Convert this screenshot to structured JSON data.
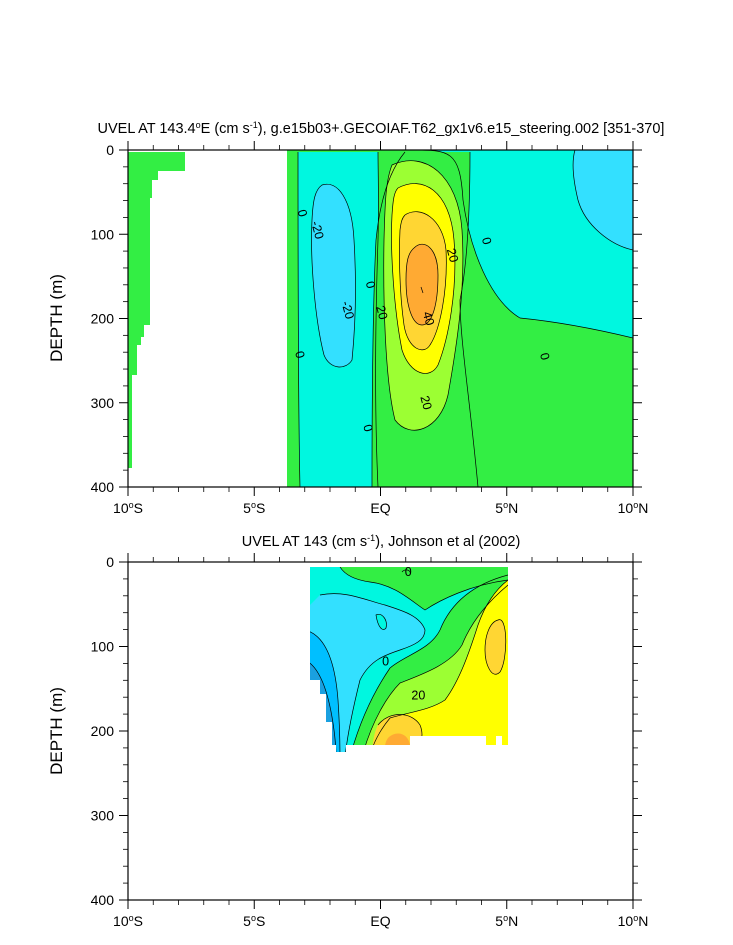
{
  "chart_data": [
    {
      "type": "contour",
      "title_html": "UVEL AT 143.4<tspan baseline-shift='super' font-size='9'>o</tspan>E (cm s<tspan baseline-shift='super' font-size='9'>-1</tspan>), g.e15b03+.GECOIAF.T62_gx1v6.e15_steering.002 [351-370]",
      "ylabel": "DEPTH (m)",
      "xlim": [
        -10,
        10
      ],
      "ylim": [
        0,
        400
      ],
      "x_ticks": [
        -10,
        -5,
        0,
        5,
        10
      ],
      "x_tick_labels": [
        "10°S",
        "5°S",
        "EQ",
        "5°N",
        "10°N"
      ],
      "y_ticks": [
        0,
        100,
        200,
        300,
        400
      ],
      "y_tick_labels": [
        "0",
        "100",
        "200",
        "300",
        "400"
      ],
      "contour_levels": [
        -30,
        -20,
        -10,
        0,
        10,
        20,
        30,
        40
      ],
      "contour_labels": [
        {
          "text": "0",
          "x": -3.1,
          "y": 75
        },
        {
          "text": "-20",
          "x": -2.5,
          "y": 95
        },
        {
          "text": "0",
          "x": -0.4,
          "y": 160
        },
        {
          "text": "-20",
          "x": -1.3,
          "y": 190
        },
        {
          "text": "20",
          "x": 0.05,
          "y": 193
        },
        {
          "text": "0",
          "x": -3.2,
          "y": 243
        },
        {
          "text": "40",
          "x": 1.9,
          "y": 200
        },
        {
          "text": "20",
          "x": 2.85,
          "y": 125
        },
        {
          "text": "0",
          "x": 4.2,
          "y": 108
        },
        {
          "text": "0",
          "x": 6.5,
          "y": 245
        },
        {
          "text": "20",
          "x": 1.8,
          "y": 300
        },
        {
          "text": "0",
          "x": -0.5,
          "y": 330
        }
      ]
    },
    {
      "type": "contour",
      "title_html": "UVEL AT 143 (cm s<tspan baseline-shift='super' font-size='9'>-1</tspan>), Johnson et al (2002)",
      "ylabel": "DEPTH (m)",
      "xlim": [
        -10,
        10
      ],
      "ylim": [
        0,
        400
      ],
      "x_ticks": [
        -10,
        -5,
        0,
        5,
        10
      ],
      "x_tick_labels": [
        "10°S",
        "5°S",
        "EQ",
        "5°N",
        "10°N"
      ],
      "y_ticks": [
        0,
        100,
        200,
        300,
        400
      ],
      "y_tick_labels": [
        "0",
        "100",
        "200",
        "300",
        "400"
      ],
      "contour_levels": [
        -30,
        -20,
        -10,
        0,
        10,
        20,
        30
      ],
      "contour_labels": [
        {
          "text": "0",
          "x": 1.1,
          "y": 12
        },
        {
          "text": "0",
          "x": 0.2,
          "y": 118
        },
        {
          "text": "20",
          "x": 1.5,
          "y": 158
        }
      ]
    }
  ],
  "colors": {
    "neg30": "#00bfff",
    "neg20": "#33e0ff",
    "neg10": "#00f7e0",
    "pos0": "#33ee44",
    "pos10": "#9cff33",
    "pos20": "#ffff00",
    "pos30": "#ffd633",
    "pos40": "#ffaa33"
  }
}
